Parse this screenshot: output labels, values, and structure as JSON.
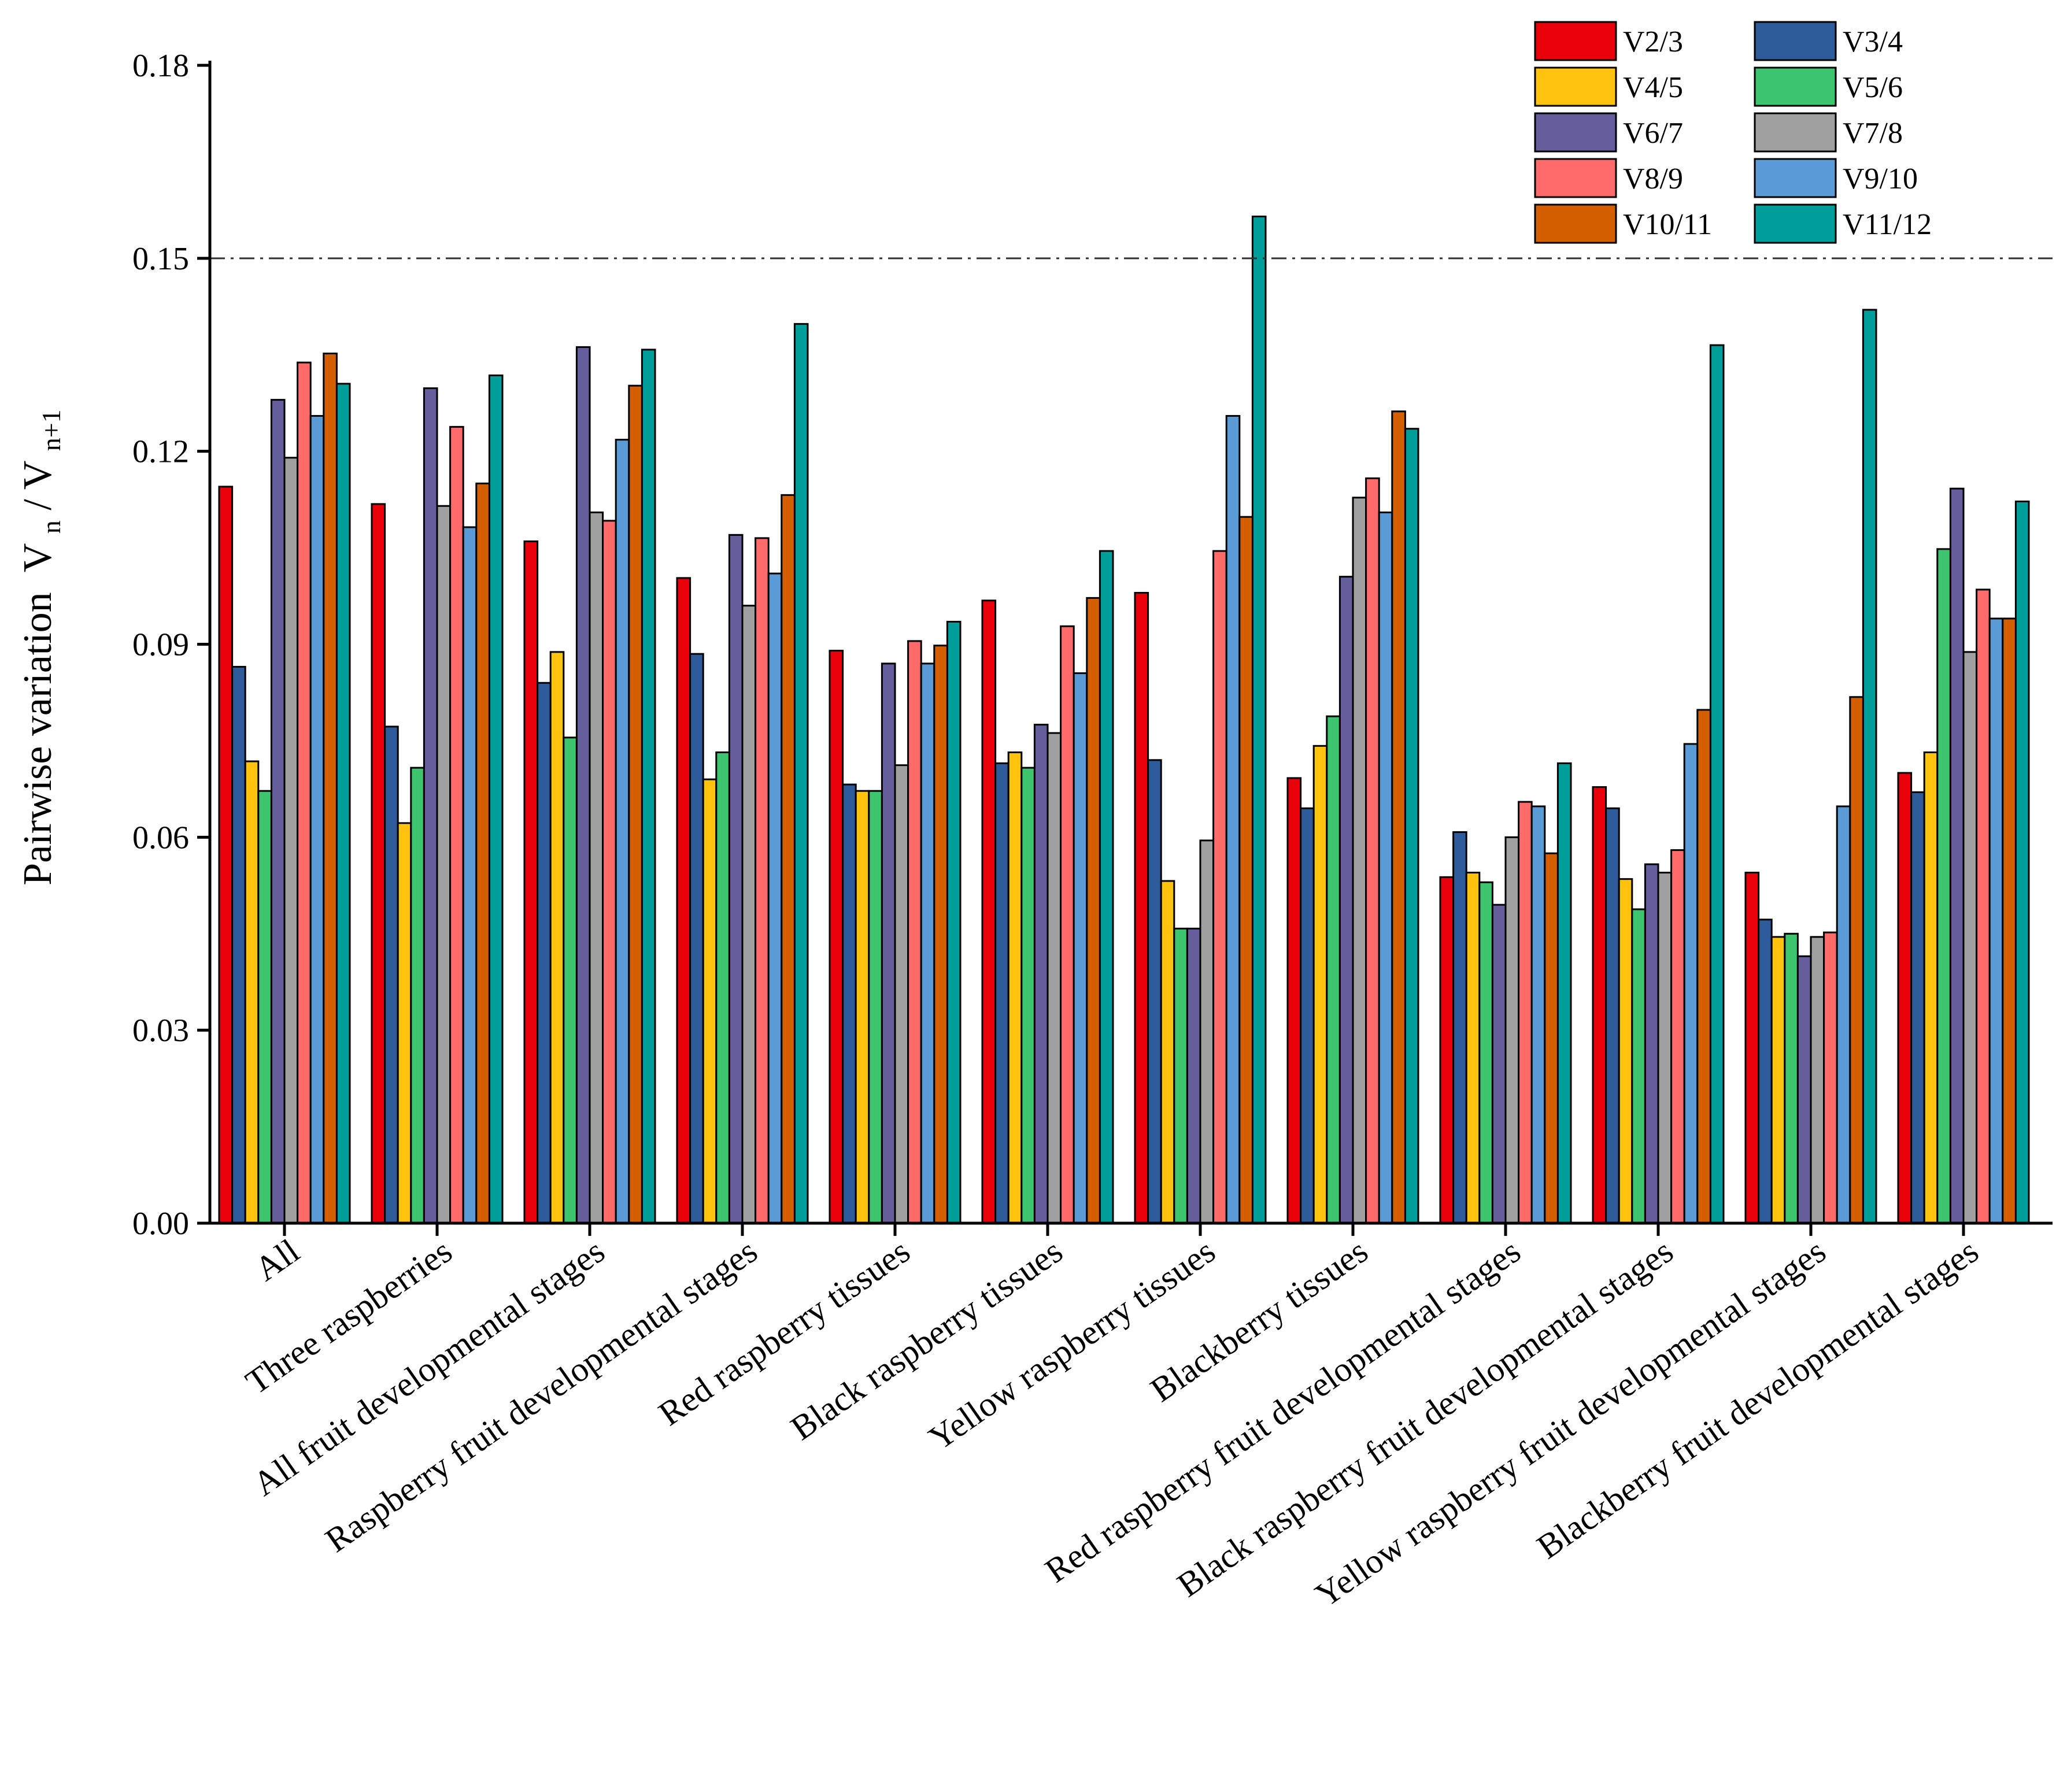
{
  "chart_data": {
    "type": "bar",
    "ylabel": "Pairwise variation",
    "ylabel_expr": {
      "v1": "V",
      "s1": "n",
      "slash": "/",
      "v2": "V",
      "s2": "n+1"
    },
    "ylim": [
      0,
      0.18
    ],
    "yticks": [
      "0.00",
      "0.03",
      "0.06",
      "0.09",
      "0.12",
      "0.15",
      "0.18"
    ],
    "ytick_values": [
      0,
      0.03,
      0.06,
      0.09,
      0.12,
      0.15,
      0.18
    ],
    "threshold": 0.15,
    "grid": false,
    "legend_position": "top-right",
    "categories": [
      "All",
      "Three raspberries",
      "All fruit developmental stages",
      "Raspberry fruit developmental stages",
      "Red raspberry tissues",
      "Black raspberry tissues",
      "Yellow raspberry tissues",
      "Blackberry tissues",
      "Red raspberry fruit developmental stages",
      "Black raspberry fruit developmental stages",
      "Yellow raspberry fruit developmental stages",
      "Blackberry fruit developmental stages"
    ],
    "series": [
      {
        "name": "V2/3",
        "color": "#e8000b",
        "values": [
          0.1145,
          0.1118,
          0.106,
          0.1003,
          0.089,
          0.0968,
          0.098,
          0.0692,
          0.0538,
          0.0678,
          0.0545,
          0.07
        ]
      },
      {
        "name": "V3/4",
        "color": "#2e5b9a",
        "values": [
          0.0865,
          0.0772,
          0.084,
          0.0885,
          0.0682,
          0.0715,
          0.072,
          0.0645,
          0.0608,
          0.0645,
          0.0472,
          0.067
        ]
      },
      {
        "name": "V4/5",
        "color": "#ffc20e",
        "values": [
          0.0718,
          0.0622,
          0.0888,
          0.069,
          0.0672,
          0.0732,
          0.0532,
          0.0742,
          0.0545,
          0.0535,
          0.0445,
          0.0732
        ]
      },
      {
        "name": "V5/6",
        "color": "#3cc46e",
        "values": [
          0.0672,
          0.0708,
          0.0755,
          0.0732,
          0.0672,
          0.0708,
          0.0458,
          0.0788,
          0.053,
          0.0488,
          0.045,
          0.1048
        ]
      },
      {
        "name": "V6/7",
        "color": "#645e9d",
        "values": [
          0.128,
          0.1298,
          0.1362,
          0.107,
          0.087,
          0.0775,
          0.0458,
          0.1005,
          0.0495,
          0.0558,
          0.0415,
          0.1142
        ]
      },
      {
        "name": "V7/8",
        "color": "#a0a0a0",
        "values": [
          0.119,
          0.1115,
          0.1105,
          0.096,
          0.0712,
          0.0762,
          0.0595,
          0.1128,
          0.06,
          0.0545,
          0.0445,
          0.0888
        ]
      },
      {
        "name": "V8/9",
        "color": "#ff6b6b",
        "values": [
          0.1338,
          0.1238,
          0.1092,
          0.1065,
          0.0905,
          0.0928,
          0.1045,
          0.1158,
          0.0655,
          0.058,
          0.0452,
          0.0985
        ]
      },
      {
        "name": "V9/10",
        "color": "#5b9bd5",
        "values": [
          0.1255,
          0.1082,
          0.1218,
          0.101,
          0.087,
          0.0855,
          0.1255,
          0.1105,
          0.0648,
          0.0745,
          0.0648,
          0.094
        ]
      },
      {
        "name": "V10/11",
        "color": "#d45f00",
        "values": [
          0.1352,
          0.115,
          0.1302,
          0.1132,
          0.0898,
          0.0972,
          0.1098,
          0.1262,
          0.0575,
          0.0798,
          0.0818,
          0.094
        ]
      },
      {
        "name": "V11/12",
        "color": "#009e9a",
        "values": [
          0.1305,
          0.1318,
          0.1358,
          0.1398,
          0.0935,
          0.1045,
          0.1565,
          0.1235,
          0.0715,
          0.1365,
          0.142,
          0.1122
        ]
      }
    ]
  }
}
